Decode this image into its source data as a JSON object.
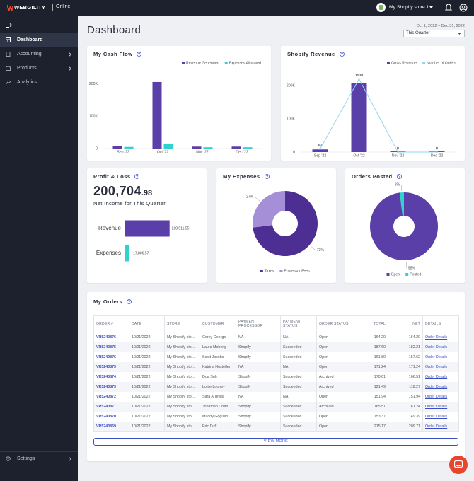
{
  "header": {
    "brand": "WEBGILITY",
    "status": "Online",
    "store": "My Shopify store 1"
  },
  "sidebar": {
    "items": [
      "Dashboard",
      "Accounting",
      "Products",
      "Analytics"
    ],
    "settings": "Settings"
  },
  "page": {
    "title": "Dashboard",
    "date_range": "Oct 1, 2022 – Dec 31, 2022",
    "period": "This Quarter"
  },
  "chart_data": [
    {
      "type": "bar",
      "title": "My Cash Flow",
      "categories": [
        "Sep '22",
        "Oct '22",
        "Nov '22",
        "Dec '22"
      ],
      "series": [
        {
          "name": "Revenue Generated",
          "color": "#5b3fa8",
          "values": [
            8000,
            206000,
            6000,
            6000
          ]
        },
        {
          "name": "Expenses Allocated",
          "color": "#2fd3cd",
          "values": [
            5000,
            14000,
            4000,
            4000
          ]
        }
      ],
      "ylim": [
        0,
        230000
      ],
      "yticks": [
        0,
        {
          "value": 100000,
          "label": "100K"
        },
        {
          "value": 200000,
          "label": "200K"
        }
      ]
    },
    {
      "type": "combo",
      "title": "Shopify Revenue",
      "categories": [
        "Sep '22",
        "Oct '22",
        "Nov '22",
        "Dec '22"
      ],
      "series": [
        {
          "name": "Gross Revenue",
          "type": "bar",
          "color": "#5b3fa8",
          "values": [
            8000,
            208000,
            2000,
            2000
          ]
        },
        {
          "name": "Number of Orders",
          "type": "line",
          "axis": "y2",
          "color": "#93d6f2",
          "values": [
            67,
            1530,
            0,
            0
          ]
        }
      ],
      "ylim": [
        0,
        230000
      ],
      "yticks": [
        0,
        {
          "value": 100000,
          "label": "100K"
        },
        {
          "value": 200000,
          "label": "200K"
        }
      ],
      "y2lim": [
        0,
        1600
      ]
    },
    {
      "type": "hbar",
      "title": "Profit & Loss",
      "amount": "200,704",
      "amount_decimals": ".98",
      "subtitle": "Net Income for This Quarter",
      "categories": [
        "Revenue",
        "Expenses"
      ],
      "values": [
        218511.55,
        17806.57
      ],
      "value_labels": [
        "218,511.55",
        "17,806.57"
      ],
      "colors": [
        "#5b3fa8",
        "#2fd3cd"
      ],
      "xlim": [
        0,
        230000
      ]
    },
    {
      "type": "donut",
      "title": "My Expenses",
      "categories": [
        "Taxes",
        "Processor Fees"
      ],
      "values": [
        73,
        27
      ],
      "value_labels": [
        "73%",
        "27%"
      ],
      "colors": [
        "#4d2f93",
        "#a58fd6"
      ]
    },
    {
      "type": "donut",
      "title": "Orders Posted",
      "categories": [
        "Open",
        "Posted"
      ],
      "values": [
        98,
        2
      ],
      "value_labels": [
        "98%",
        "2%"
      ],
      "colors": [
        "#5b3fa8",
        "#2fd3cd"
      ]
    }
  ],
  "orders": {
    "title": "My Orders",
    "columns": [
      "ORDER #",
      "DATE",
      "STORE",
      "CUSTOMER",
      "PAYMENT PROCESSOR",
      "PAYMENT STATUS",
      "ORDER STATUS",
      "TOTAL",
      "NET",
      "DETAILS"
    ],
    "rows": [
      [
        "VR5240876",
        "10/21/2022",
        "My Shopify sto...",
        "Corey George",
        "NA",
        "NA",
        "Open",
        "164.20",
        "164.20",
        "Order Details"
      ],
      [
        "VR5240875",
        "10/21/2022",
        "My Shopify sto...",
        "Laura Moberg",
        "Shopify",
        "Succeeded",
        "Open",
        "187.60",
        "182.21",
        "Order Details"
      ],
      [
        "VR5240876",
        "10/21/2022",
        "My Shopify sto...",
        "Scott Jacobs",
        "Shopify",
        "Succeeded",
        "Open",
        "161.80",
        "157.62",
        "Order Details"
      ],
      [
        "VR5240875",
        "10/21/2022",
        "My Shopify sto...",
        "Katrina Hostetler",
        "NA",
        "NA",
        "Open",
        "171.24",
        "171.24",
        "Order Details"
      ],
      [
        "VR5240874",
        "10/21/2022",
        "My Shopify sto...",
        "Dua Suh",
        "Shopify",
        "Succeeded",
        "Archived",
        "170.61",
        "166.51",
        "Order Details"
      ],
      [
        "VR5240873",
        "10/21/2022",
        "My Shopify sto...",
        "Lottie Looney",
        "Shopify",
        "Succeeded",
        "Archived",
        "121.49",
        "118.27",
        "Order Details"
      ],
      [
        "VR5240872",
        "10/21/2022",
        "My Shopify sto...",
        "Sara A Tevita",
        "NA",
        "NA",
        "Open",
        "151.94",
        "151.94",
        "Order Details"
      ],
      [
        "VR5240871",
        "10/21/2022",
        "My Shopify sto...",
        "Jonathan Crum...",
        "Shopify",
        "Succeeded",
        "Archived",
        "165.51",
        "161.24",
        "Order Details"
      ],
      [
        "VR5240870",
        "10/21/2022",
        "My Shopify sto...",
        "Maddy Goguen",
        "Shopify",
        "Succeeded",
        "Open",
        "153.37",
        "149.39",
        "Order Details"
      ],
      [
        "VR5240869",
        "10/21/2022",
        "My Shopify sto...",
        "Eric Duff",
        "Shopify",
        "Succeeded",
        "Open",
        "215.17",
        "209.71",
        "Order Details"
      ]
    ],
    "view_more": "VIEW MORE"
  }
}
